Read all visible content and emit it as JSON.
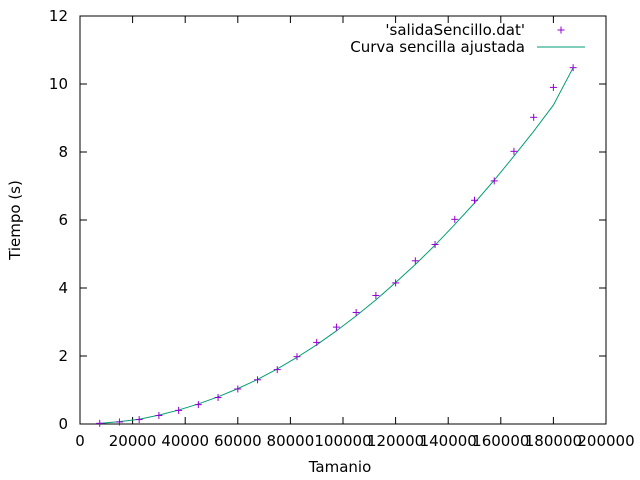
{
  "chart_data": {
    "type": "scatter",
    "xlabel": "Tamanio",
    "ylabel": "Tiempo (s)",
    "xlim": [
      0,
      200000
    ],
    "ylim": [
      0,
      12
    ],
    "xticks": [
      0,
      20000,
      40000,
      60000,
      80000,
      100000,
      120000,
      140000,
      160000,
      180000,
      200000
    ],
    "yticks": [
      0,
      2,
      4,
      6,
      8,
      10,
      12
    ],
    "grid": false,
    "legend_position": "top-right",
    "series": [
      {
        "name": "'salidaSencillo.dat'",
        "kind": "points",
        "marker": "+",
        "color": "#9400d3",
        "x": [
          7500,
          15000,
          22500,
          30000,
          37500,
          45000,
          52500,
          60000,
          67500,
          75000,
          82500,
          90000,
          97500,
          105000,
          112500,
          120000,
          127500,
          135000,
          142500,
          150000,
          157500,
          165000,
          172500,
          180000,
          187500
        ],
        "y": [
          0.02,
          0.06,
          0.13,
          0.25,
          0.4,
          0.57,
          0.78,
          1.03,
          1.3,
          1.6,
          1.98,
          2.4,
          2.85,
          3.28,
          3.78,
          4.15,
          4.8,
          5.28,
          6.02,
          6.58,
          7.15,
          8.02,
          9.02,
          9.9,
          10.48
        ]
      },
      {
        "name": "Curva sencilla ajustada",
        "kind": "line",
        "color": "#009e73",
        "x": [
          7500,
          15000,
          22500,
          30000,
          37500,
          45000,
          52500,
          60000,
          67500,
          75000,
          82500,
          90000,
          97500,
          105000,
          112500,
          120000,
          127500,
          135000,
          142500,
          150000,
          157500,
          165000,
          172500,
          180000,
          187500
        ],
        "y": [
          0.02,
          0.07,
          0.14,
          0.26,
          0.41,
          0.59,
          0.8,
          1.04,
          1.31,
          1.62,
          1.96,
          2.33,
          2.74,
          3.18,
          3.65,
          4.16,
          4.69,
          5.26,
          5.87,
          6.5,
          7.17,
          7.88,
          8.61,
          9.38,
          10.48
        ]
      }
    ]
  }
}
